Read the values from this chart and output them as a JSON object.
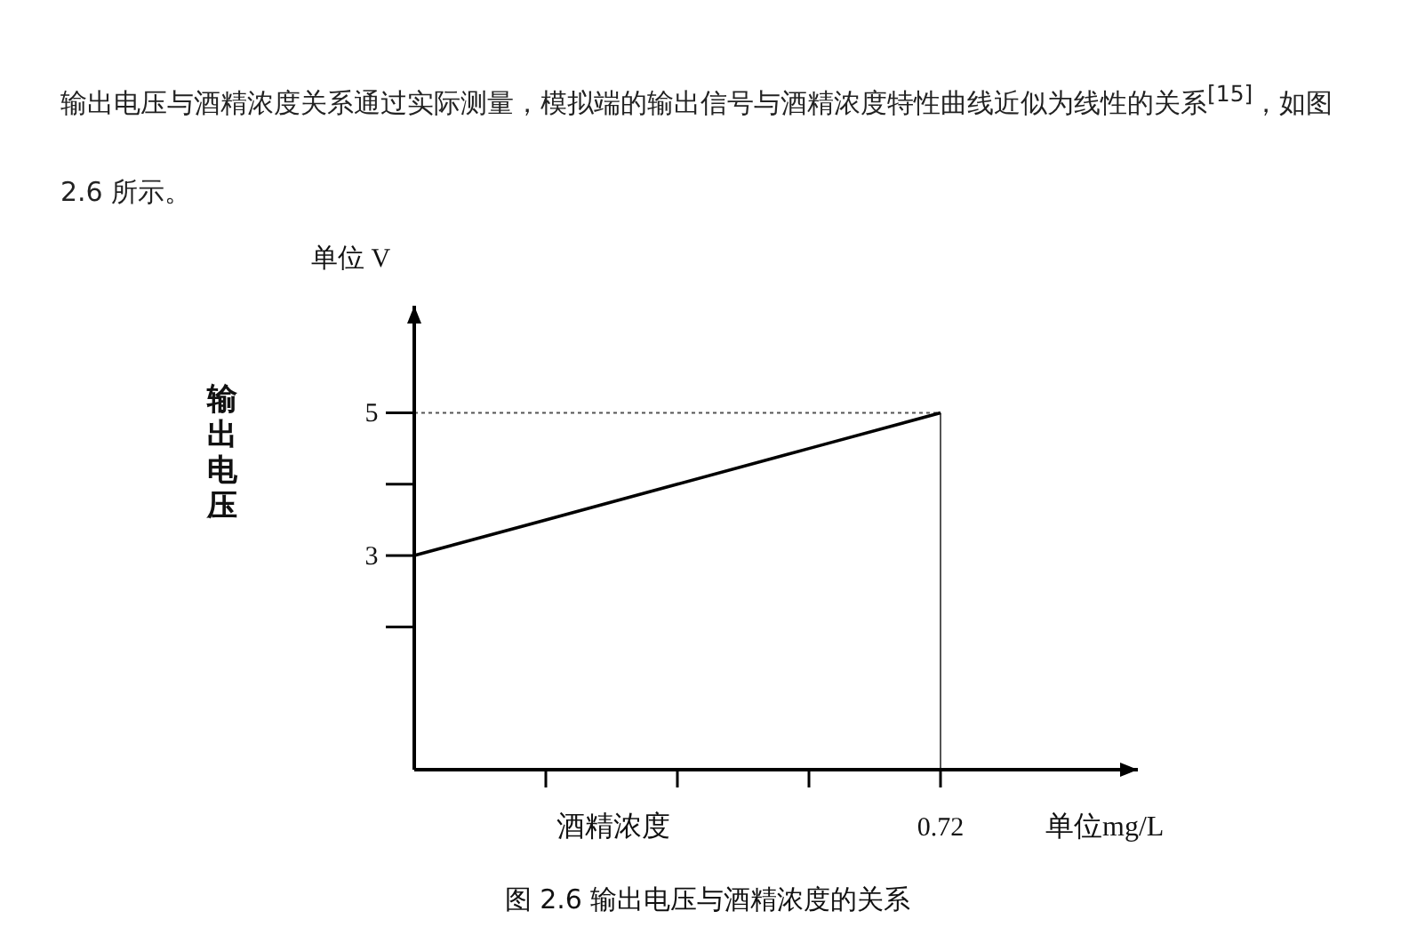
{
  "chart_data": {
    "type": "line",
    "annotations": [
      "输出电压与酒精浓度关系通过实际测量，模拟端的输出信号与酒精浓度特性曲线近似为线性的关系$^{[15]}$，如图 2.6 所示。",
      "单位 V",
      "单位mg/L",
      "图 2.6 输出电压与酒精浓度的关系"
    ],
    "xlabel": "酒精浓度",
    "ylabel": "输出电压",
    "categories": [
      null,
      null,
      null,
      null,
      "0.72"
    ],
    "series": [
      {
        "color": "#000000",
        "values": [
          3,
          3.5,
          4,
          4.5,
          5
        ]
      }
    ],
    "ylim": [
      0,
      6.5
    ],
    "yticks": [
      {
        "value": 2,
        "label": null
      },
      3,
      {
        "value": 4,
        "label": null
      },
      5
    ],
    "ref_lines": [
      {
        "axis": "y",
        "value": 5,
        "line_style": "dotted"
      },
      {
        "axis": "x",
        "value": "0.72",
        "line_style": "solid"
      }
    ],
    "grid": false,
    "legend": false,
    "marker": "none",
    "line_style": "solid"
  }
}
